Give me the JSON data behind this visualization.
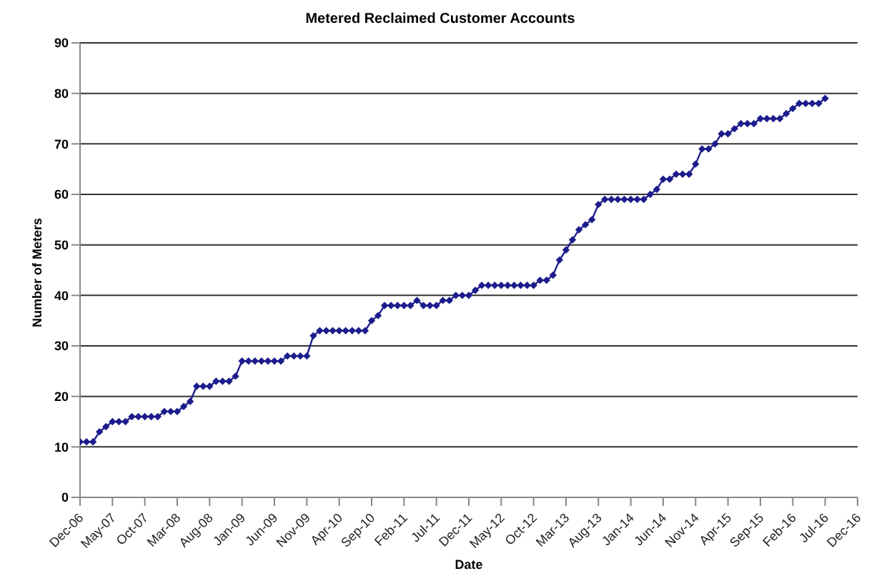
{
  "chart_data": {
    "type": "line",
    "title": "Metered Reclaimed Customer Accounts",
    "xlabel": "Date",
    "ylabel": "Number of Meters",
    "x": [
      "2006-12",
      "2007-01",
      "2007-02",
      "2007-03",
      "2007-04",
      "2007-05",
      "2007-06",
      "2007-07",
      "2007-08",
      "2007-09",
      "2007-10",
      "2007-11",
      "2007-12",
      "2008-01",
      "2008-02",
      "2008-03",
      "2008-04",
      "2008-05",
      "2008-06",
      "2008-07",
      "2008-08",
      "2008-09",
      "2008-10",
      "2008-11",
      "2008-12",
      "2009-01",
      "2009-02",
      "2009-03",
      "2009-04",
      "2009-05",
      "2009-06",
      "2009-07",
      "2009-08",
      "2009-09",
      "2009-10",
      "2009-11",
      "2009-12",
      "2010-01",
      "2010-02",
      "2010-03",
      "2010-04",
      "2010-05",
      "2010-06",
      "2010-07",
      "2010-08",
      "2010-09",
      "2010-10",
      "2010-11",
      "2010-12",
      "2011-01",
      "2011-02",
      "2011-03",
      "2011-04",
      "2011-05",
      "2011-06",
      "2011-07",
      "2011-08",
      "2011-09",
      "2011-10",
      "2011-11",
      "2011-12",
      "2012-01",
      "2012-02",
      "2012-03",
      "2012-04",
      "2012-05",
      "2012-06",
      "2012-07",
      "2012-08",
      "2012-09",
      "2012-10",
      "2012-11",
      "2012-12",
      "2013-01",
      "2013-02",
      "2013-03",
      "2013-04",
      "2013-05",
      "2013-06",
      "2013-07",
      "2013-08",
      "2013-09",
      "2013-10",
      "2013-11",
      "2013-12",
      "2014-01",
      "2014-02",
      "2014-03",
      "2014-04",
      "2014-05",
      "2014-06",
      "2014-07",
      "2014-08",
      "2014-09",
      "2014-10",
      "2014-11",
      "2014-12",
      "2015-01",
      "2015-02",
      "2015-03",
      "2015-04",
      "2015-05",
      "2015-06",
      "2015-07",
      "2015-08",
      "2015-09",
      "2015-10",
      "2015-11",
      "2015-12",
      "2016-01",
      "2016-02",
      "2016-03",
      "2016-04",
      "2016-05",
      "2016-06",
      "2016-07"
    ],
    "series": [
      {
        "color": "#1c1c8c",
        "values": [
          11,
          11,
          11,
          13,
          14,
          15,
          15,
          15,
          16,
          16,
          16,
          16,
          16,
          17,
          17,
          17,
          18,
          19,
          22,
          22,
          22,
          23,
          23,
          23,
          24,
          27,
          27,
          27,
          27,
          27,
          27,
          27,
          28,
          28,
          28,
          28,
          32,
          33,
          33,
          33,
          33,
          33,
          33,
          33,
          33,
          35,
          36,
          38,
          38,
          38,
          38,
          38,
          39,
          38,
          38,
          38,
          39,
          39,
          40,
          40,
          40,
          41,
          42,
          42,
          42,
          42,
          42,
          42,
          42,
          42,
          42,
          43,
          43,
          44,
          47,
          49,
          51,
          53,
          54,
          55,
          58,
          59,
          59,
          59,
          59,
          59,
          59,
          59,
          60,
          61,
          63,
          63,
          64,
          64,
          64,
          66,
          69,
          69,
          70,
          72,
          72,
          73,
          74,
          74,
          74,
          75,
          75,
          75,
          75,
          76,
          77,
          78,
          78,
          78,
          78,
          79
        ]
      }
    ],
    "xlim": [
      "2006-12",
      "2016-12"
    ],
    "xticks": [
      {
        "value": "2006-12",
        "label": "Dec-06"
      },
      {
        "value": "2007-05",
        "label": "May-07"
      },
      {
        "value": "2007-10",
        "label": "Oct-07"
      },
      {
        "value": "2008-03",
        "label": "Mar-08"
      },
      {
        "value": "2008-08",
        "label": "Aug-08"
      },
      {
        "value": "2009-01",
        "label": "Jan-09"
      },
      {
        "value": "2009-06",
        "label": "Jun-09"
      },
      {
        "value": "2009-11",
        "label": "Nov-09"
      },
      {
        "value": "2010-04",
        "label": "Apr-10"
      },
      {
        "value": "2010-09",
        "label": "Sep-10"
      },
      {
        "value": "2011-02",
        "label": "Feb-11"
      },
      {
        "value": "2011-07",
        "label": "Jul-11"
      },
      {
        "value": "2011-12",
        "label": "Dec-11"
      },
      {
        "value": "2012-05",
        "label": "May-12"
      },
      {
        "value": "2012-10",
        "label": "Oct-12"
      },
      {
        "value": "2013-03",
        "label": "Mar-13"
      },
      {
        "value": "2013-08",
        "label": "Aug-13"
      },
      {
        "value": "2014-01",
        "label": "Jan-14"
      },
      {
        "value": "2014-06",
        "label": "Jun-14"
      },
      {
        "value": "2014-11",
        "label": "Nov-14"
      },
      {
        "value": "2015-04",
        "label": "Apr-15"
      },
      {
        "value": "2015-09",
        "label": "Sep-15"
      },
      {
        "value": "2016-02",
        "label": "Feb-16"
      },
      {
        "value": "2016-07",
        "label": "Jul-16"
      },
      {
        "value": "2016-12",
        "label": "Dec-16"
      }
    ],
    "ylim": [
      0,
      90
    ],
    "yticks": [
      0,
      10,
      20,
      30,
      40,
      50,
      60,
      70,
      80,
      90
    ],
    "grid": "y",
    "marker": "diamond",
    "line_style": "solid",
    "legend": false
  }
}
